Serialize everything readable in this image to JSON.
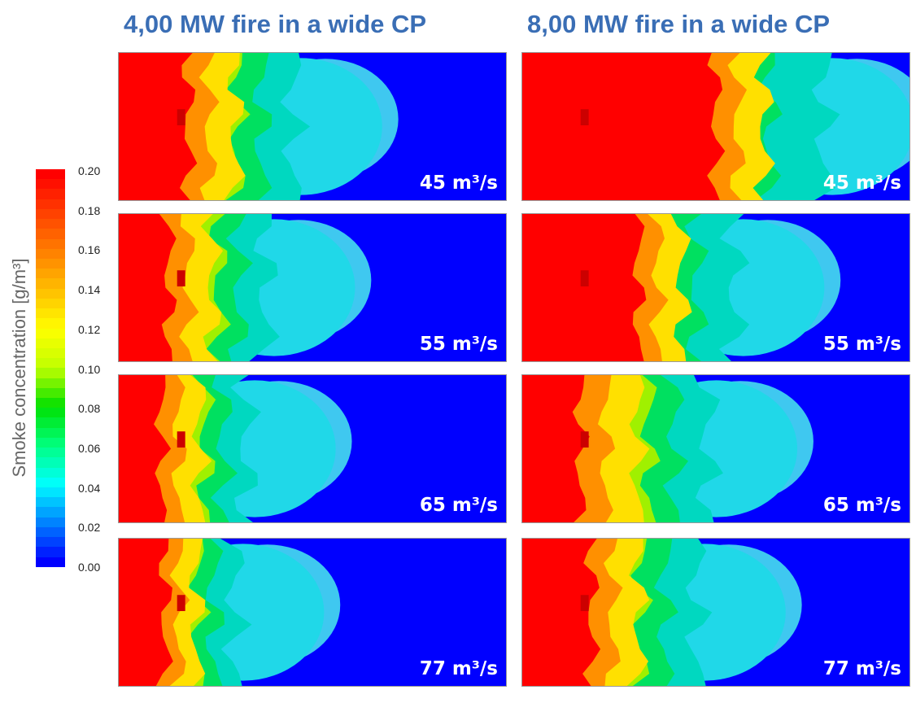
{
  "titles": {
    "left": "4,00 MW fire in a wide CP",
    "right": "8,00 MW fire in a wide CP"
  },
  "legend": {
    "axis_label": "Smoke concentration [g/m³]",
    "ticks": [
      "0.20",
      "0.18",
      "0.16",
      "0.14",
      "0.12",
      "0.10",
      "0.08",
      "0.06",
      "0.04",
      "0.02",
      "0.00"
    ]
  },
  "panels": {
    "left": [
      {
        "flow": "45 m³/s",
        "red_extent": 0.18,
        "smoke_extent": 0.45
      },
      {
        "flow": "55 m³/s",
        "red_extent": 0.13,
        "smoke_extent": 0.38
      },
      {
        "flow": "65 m³/s",
        "red_extent": 0.11,
        "smoke_extent": 0.33
      },
      {
        "flow": "77 m³/s",
        "red_extent": 0.12,
        "smoke_extent": 0.3
      }
    ],
    "right": [
      {
        "flow": "45 m³/s",
        "red_extent": 0.5,
        "smoke_extent": 0.78
      },
      {
        "flow": "55 m³/s",
        "red_extent": 0.3,
        "smoke_extent": 0.55
      },
      {
        "flow": "65 m³/s",
        "red_extent": 0.15,
        "smoke_extent": 0.48
      },
      {
        "flow": "77 m³/s",
        "red_extent": 0.18,
        "smoke_extent": 0.45
      }
    ]
  },
  "colors": {
    "colormap": [
      "#ff0000",
      "#ff4000",
      "#ff8000",
      "#ffbf00",
      "#ffff00",
      "#bfff00",
      "#00e000",
      "#00ff80",
      "#00ffff",
      "#0080ff",
      "#0000ff"
    ]
  }
}
